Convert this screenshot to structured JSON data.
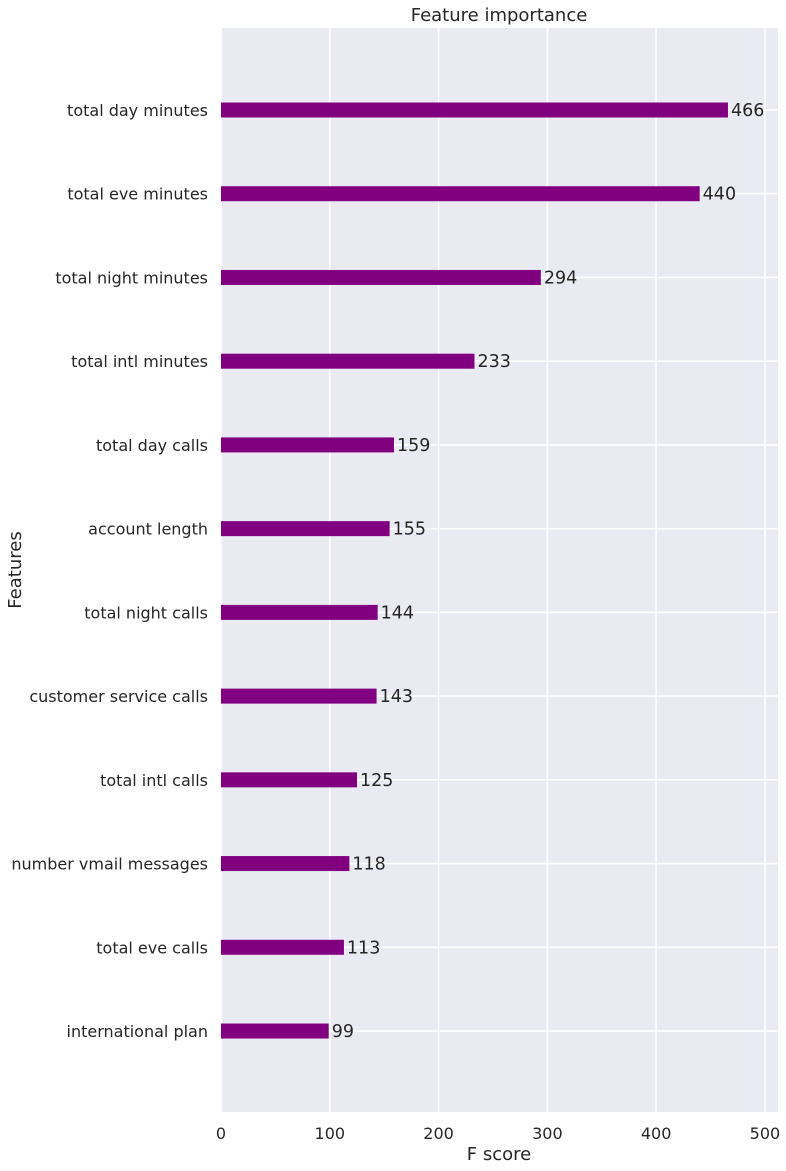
{
  "chart_data": {
    "type": "bar",
    "orientation": "horizontal",
    "title": "Feature importance",
    "xlabel": "F score",
    "ylabel": "Features",
    "xlim": [
      0,
      512
    ],
    "xticks": [
      0,
      100,
      200,
      300,
      400,
      500
    ],
    "grid": true,
    "categories": [
      "total day minutes",
      "total eve minutes",
      "total night minutes",
      "total intl minutes",
      "total day calls",
      "account length",
      "total night calls",
      "customer service calls",
      "total intl calls",
      "number vmail messages",
      "total eve calls",
      "international plan"
    ],
    "values": [
      466,
      440,
      294,
      233,
      159,
      155,
      144,
      143,
      125,
      118,
      113,
      99
    ],
    "colors": {
      "bar": "#800080",
      "plot_background": "#eaeaf2",
      "grid": "#ffffff",
      "text": "#262626"
    }
  }
}
